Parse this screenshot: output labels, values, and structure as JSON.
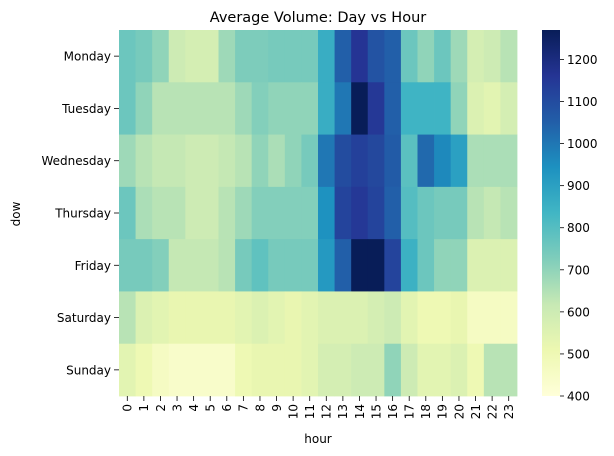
{
  "chart_data": {
    "type": "heatmap",
    "title": "Average Volume: Day vs Hour",
    "xlabel": "hour",
    "ylabel": "dow",
    "x_categories": [
      "0",
      "1",
      "2",
      "3",
      "4",
      "5",
      "6",
      "7",
      "8",
      "9",
      "10",
      "11",
      "12",
      "13",
      "14",
      "15",
      "16",
      "17",
      "18",
      "19",
      "20",
      "21",
      "22",
      "23"
    ],
    "y_categories": [
      "Monday",
      "Tuesday",
      "Wednesday",
      "Thursday",
      "Friday",
      "Saturday",
      "Sunday"
    ],
    "values": [
      [
        760,
        740,
        700,
        600,
        580,
        580,
        680,
        730,
        730,
        740,
        740,
        740,
        860,
        1050,
        1160,
        1080,
        1050,
        760,
        700,
        760,
        680,
        580,
        600,
        640
      ],
      [
        760,
        700,
        640,
        640,
        640,
        640,
        640,
        680,
        720,
        700,
        700,
        700,
        860,
        1000,
        1270,
        1150,
        1050,
        840,
        840,
        840,
        700,
        560,
        540,
        580
      ],
      [
        680,
        640,
        620,
        620,
        600,
        600,
        620,
        640,
        700,
        660,
        700,
        740,
        1000,
        1100,
        1130,
        1110,
        1060,
        790,
        1030,
        960,
        900,
        660,
        660,
        660
      ],
      [
        760,
        660,
        640,
        640,
        600,
        600,
        640,
        680,
        720,
        720,
        720,
        720,
        940,
        1120,
        1150,
        1120,
        1050,
        800,
        760,
        740,
        740,
        640,
        620,
        640
      ],
      [
        740,
        740,
        720,
        620,
        620,
        620,
        640,
        740,
        780,
        740,
        740,
        740,
        920,
        1050,
        1270,
        1270,
        1120,
        850,
        760,
        700,
        700,
        560,
        560,
        560
      ],
      [
        640,
        560,
        540,
        520,
        520,
        520,
        520,
        540,
        560,
        540,
        520,
        540,
        560,
        560,
        560,
        580,
        600,
        540,
        500,
        500,
        520,
        460,
        460,
        460
      ],
      [
        540,
        500,
        460,
        440,
        440,
        440,
        440,
        500,
        520,
        520,
        520,
        540,
        580,
        580,
        600,
        600,
        700,
        600,
        540,
        540,
        560,
        500,
        640,
        640
      ]
    ],
    "colorbar": {
      "colormap": "YlGnBu",
      "vmin": 400,
      "vmax": 1270,
      "ticks": [
        400,
        500,
        600,
        700,
        800,
        900,
        1000,
        1100,
        1200
      ]
    }
  }
}
